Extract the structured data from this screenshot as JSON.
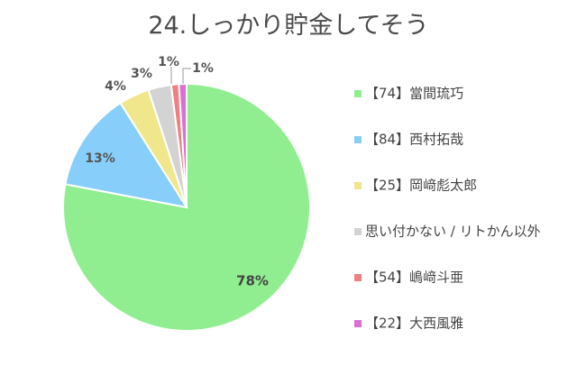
{
  "chart_data": {
    "type": "pie",
    "title": "24.しっかり貯金してそう",
    "categories": [
      "【74】當間琉巧",
      "【84】西村拓哉",
      "【25】岡﨑彪太郎",
      "思い付かない / リトかん以外",
      "【54】嶋﨑斗亜",
      "【22】大西風雅"
    ],
    "values": [
      78,
      13,
      4,
      3,
      1,
      1
    ],
    "labels": [
      "78%",
      "13%",
      "4%",
      "3%",
      "1%",
      "1%"
    ],
    "colors": [
      "#90ee90",
      "#87cefa",
      "#f0e68c",
      "#d3d3d3",
      "#f08080",
      "#da70d6"
    ],
    "legend_position": "right"
  }
}
